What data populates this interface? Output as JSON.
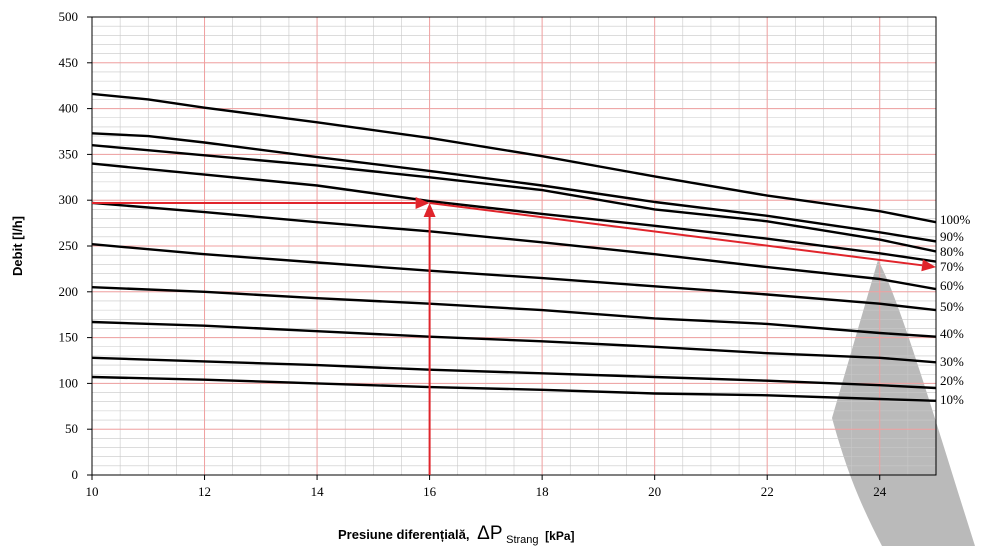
{
  "chart_data": {
    "type": "line",
    "xlabel": "Presiune diferențială,",
    "xlabel_symbol": "ΔP",
    "xlabel_subscript": "Strang",
    "xlabel_unit": "[kPa]",
    "ylabel": "Debit [l/h]",
    "xlim": [
      10,
      25
    ],
    "ylim": [
      0,
      500
    ],
    "x_ticks": [
      10,
      12,
      14,
      16,
      18,
      20,
      22,
      24
    ],
    "y_ticks": [
      0,
      50,
      100,
      150,
      200,
      250,
      300,
      350,
      400,
      450,
      500
    ],
    "grid": true,
    "series": [
      {
        "name": "100%",
        "x": [
          10,
          11,
          12,
          14,
          16,
          18,
          20,
          22,
          24,
          25
        ],
        "y": [
          416,
          410,
          401,
          385,
          368,
          348,
          326,
          305,
          288,
          276
        ]
      },
      {
        "name": "90%",
        "x": [
          10,
          11,
          12,
          14,
          16,
          18,
          20,
          22,
          24,
          25
        ],
        "y": [
          373,
          370,
          363,
          347,
          332,
          316,
          298,
          283,
          265,
          255
        ]
      },
      {
        "name": "80%",
        "x": [
          10,
          12,
          14,
          16,
          18,
          20,
          22,
          24,
          25
        ],
        "y": [
          360,
          349,
          338,
          325,
          311,
          290,
          277,
          257,
          244
        ]
      },
      {
        "name": "70%",
        "x": [
          10,
          12,
          14,
          16,
          18,
          20,
          22,
          24,
          25
        ],
        "y": [
          340,
          328,
          316,
          299,
          285,
          272,
          258,
          242,
          233
        ]
      },
      {
        "name": "60%",
        "x": [
          10,
          12,
          14,
          16,
          18,
          20,
          22,
          24,
          25
        ],
        "y": [
          297,
          287,
          276,
          266,
          254,
          241,
          227,
          214,
          203
        ]
      },
      {
        "name": "50%",
        "x": [
          10,
          12,
          14,
          16,
          18,
          20,
          22,
          24,
          25
        ],
        "y": [
          252,
          241,
          232,
          223,
          215,
          206,
          197,
          187,
          180
        ]
      },
      {
        "name": "40%",
        "x": [
          10,
          12,
          14,
          16,
          18,
          20,
          22,
          24,
          25
        ],
        "y": [
          205,
          200,
          193,
          187,
          180,
          171,
          165,
          155,
          151
        ]
      },
      {
        "name": "30%",
        "x": [
          10,
          12,
          14,
          16,
          18,
          20,
          22,
          24,
          25
        ],
        "y": [
          167,
          163,
          157,
          151,
          146,
          140,
          133,
          128,
          123
        ]
      },
      {
        "name": "20%",
        "x": [
          10,
          12,
          14,
          16,
          18,
          20,
          22,
          24,
          25
        ],
        "y": [
          128,
          124,
          120,
          115,
          111,
          107,
          103,
          98,
          95
        ]
      },
      {
        "name": "10%",
        "x": [
          10,
          12,
          14,
          16,
          18,
          20,
          22,
          24,
          25
        ],
        "y": [
          107,
          104,
          100,
          96,
          93,
          89,
          87,
          83,
          81
        ]
      }
    ],
    "annotations": {
      "arrow_up": {
        "from": [
          16,
          0
        ],
        "to": [
          16,
          297
        ]
      },
      "arrow_left": {
        "from": [
          16,
          297
        ],
        "to": [
          10,
          297
        ]
      },
      "arrow_right": {
        "from": [
          16,
          297
        ],
        "to": [
          25,
          227
        ]
      },
      "color": "#e0242b"
    },
    "colors": {
      "major_grid": "#f0a0a0",
      "minor_grid": "#c8c8c8",
      "curve": "#000000",
      "annotation": "#e0242b",
      "watermark": "#b4b4b4"
    }
  }
}
